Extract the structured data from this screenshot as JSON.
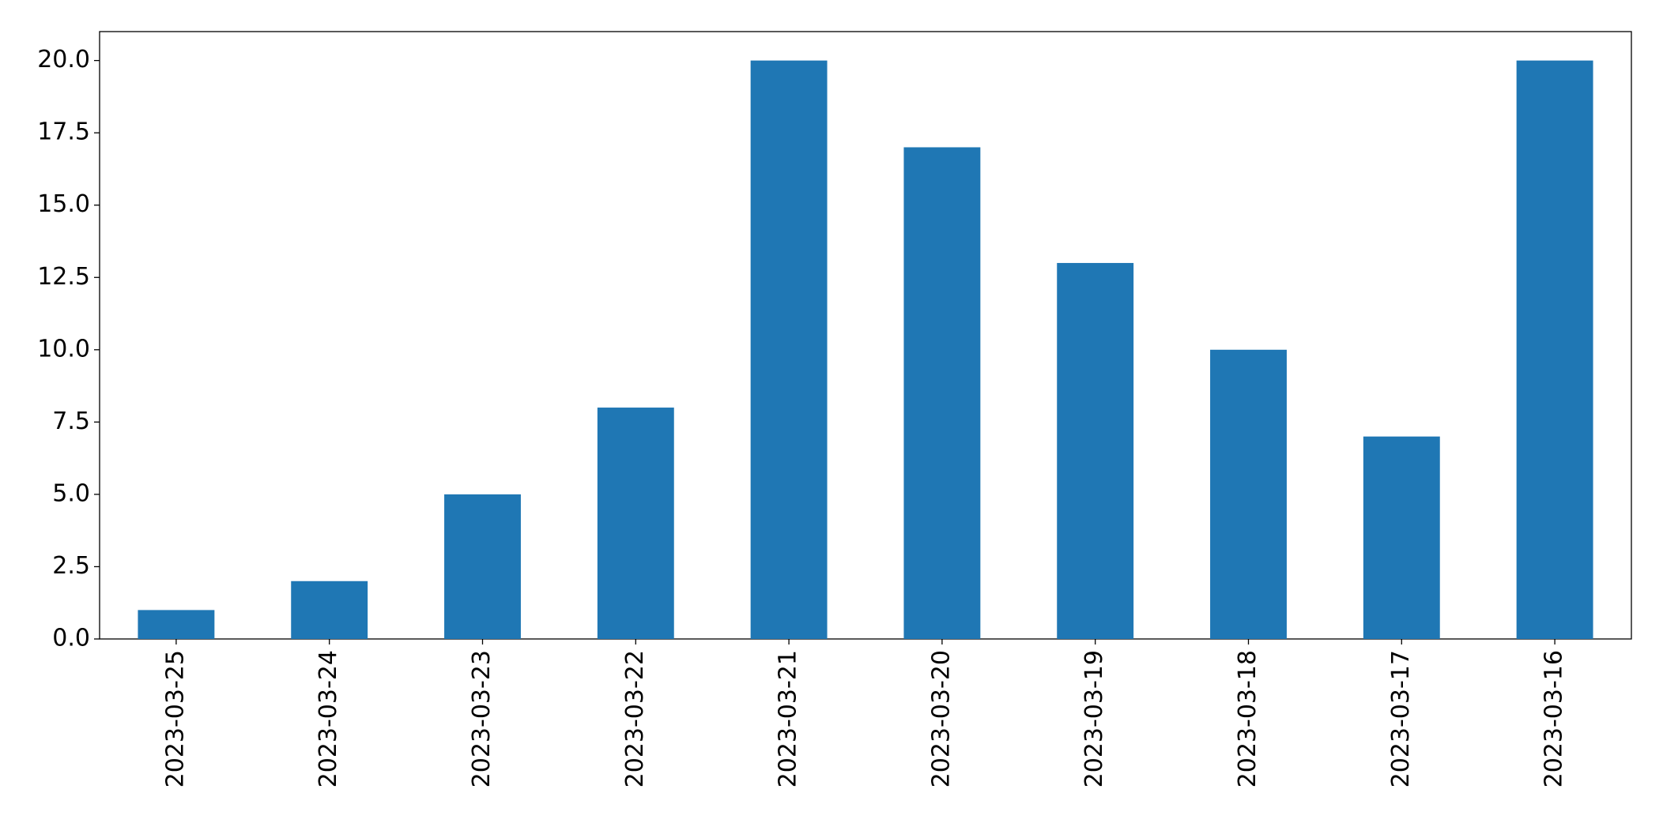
{
  "chart_data": {
    "type": "bar",
    "categories": [
      "2023-03-25",
      "2023-03-24",
      "2023-03-23",
      "2023-03-22",
      "2023-03-21",
      "2023-03-20",
      "2023-03-19",
      "2023-03-18",
      "2023-03-17",
      "2023-03-16"
    ],
    "values": [
      1,
      2,
      5,
      8,
      20,
      17,
      13,
      10,
      7,
      20
    ],
    "color": "#1f77b4",
    "ylim": [
      0,
      21
    ],
    "yticks": [
      {
        "value": 0,
        "label": "0.0"
      },
      2.5,
      {
        "value": 5,
        "label": "5.0"
      },
      7.5,
      {
        "value": 10,
        "label": "10.0"
      },
      12.5,
      {
        "value": 15,
        "label": "15.0"
      },
      17.5,
      {
        "value": 20,
        "label": "20.0"
      }
    ],
    "grid": false
  }
}
